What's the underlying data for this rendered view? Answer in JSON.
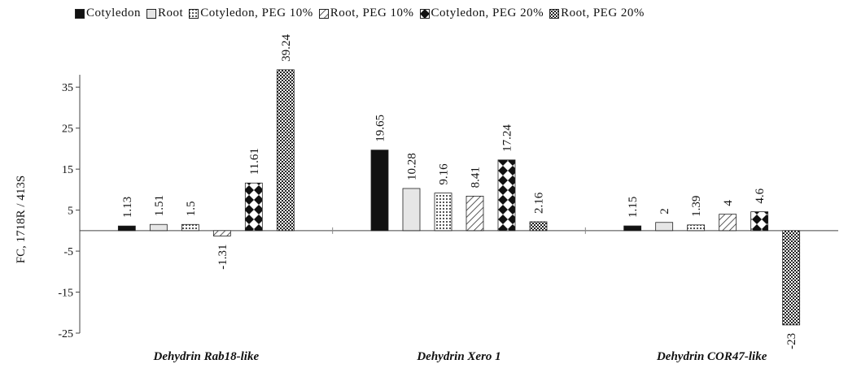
{
  "chart_data": {
    "type": "bar",
    "ylabel": "FC, 1718R / 413S",
    "ylim": [
      -25,
      40
    ],
    "yticks": [
      35,
      25,
      15,
      5,
      -5,
      -15,
      -25
    ],
    "grid": false,
    "legend_position": "top",
    "categories": [
      "Dehydrin Rab18-like",
      "Dehydrin Xero 1",
      "Dehydrin COR47-like"
    ],
    "series": [
      {
        "name": "Cotyledon",
        "pattern": "solid-black",
        "values": [
          1.13,
          19.65,
          1.15
        ],
        "labels": [
          "1.13",
          "19.65",
          "1.15"
        ]
      },
      {
        "name": "Root",
        "pattern": "light-gray",
        "values": [
          1.51,
          10.28,
          2
        ],
        "labels": [
          "1.51",
          "10.28",
          "2"
        ]
      },
      {
        "name": "Cotyledon, PEG 10%",
        "pattern": "dotted",
        "values": [
          1.5,
          9.16,
          1.39
        ],
        "labels": [
          "1.5",
          "9.16",
          "1.39"
        ]
      },
      {
        "name": "Root, PEG 10%",
        "pattern": "diagonal-hatch",
        "values": [
          -1.31,
          8.41,
          4
        ],
        "labels": [
          "-1.31",
          "8.41",
          "4"
        ]
      },
      {
        "name": "Cotyledon, PEG 20%",
        "pattern": "diamond-checker",
        "values": [
          11.61,
          17.24,
          4.6
        ],
        "labels": [
          "11.61",
          "17.24",
          "4.6"
        ]
      },
      {
        "name": "Root, PEG 20%",
        "pattern": "dense-checker",
        "values": [
          39.24,
          2.16,
          -23
        ],
        "labels": [
          "39.24",
          "2.16",
          "-23"
        ]
      }
    ]
  }
}
